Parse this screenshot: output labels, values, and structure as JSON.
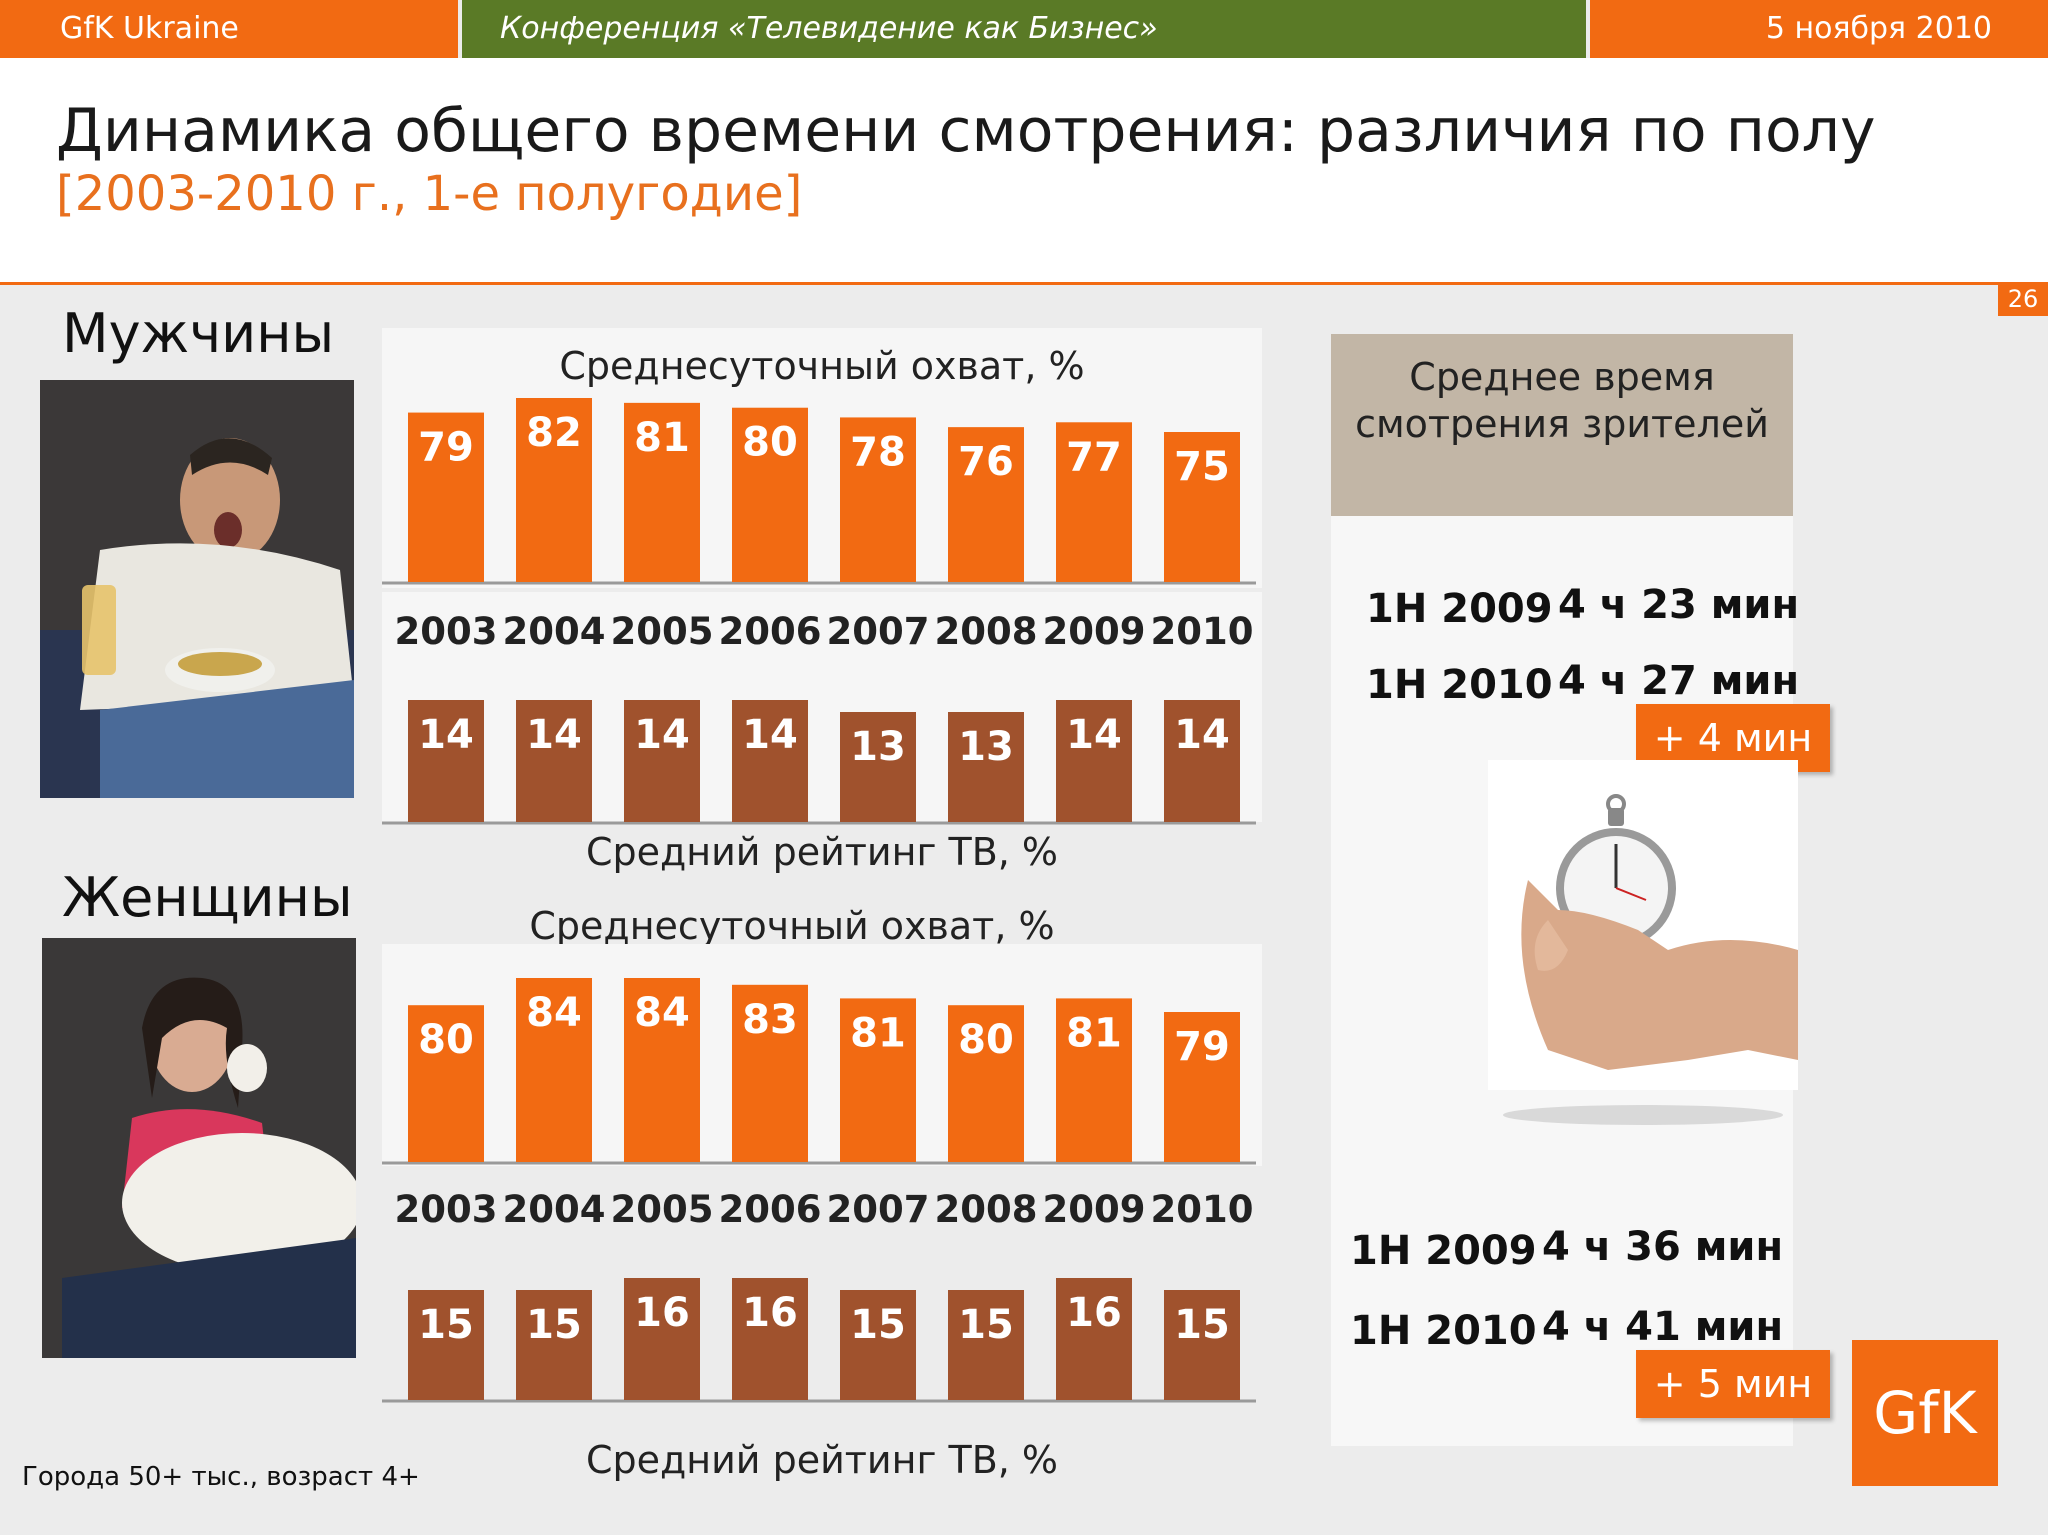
{
  "header": {
    "left": "GfK Ukraine",
    "center": "Конференция «Телевидение  как  Бизнес»",
    "right": "5 ноября 2010"
  },
  "title": "Динамика общего времени смотрения: различия по полу",
  "subtitle": "[2003-2010 г., 1-е полугодие]",
  "page_number": "26",
  "men": {
    "label": "Мужчины",
    "reach_caption": "Среднесуточный охват, %",
    "rating_caption": "Средний рейтинг ТВ, %"
  },
  "women": {
    "label": "Женщины",
    "reach_caption": "Среднесуточный охват, %",
    "rating_caption": "Средний рейтинг ТВ, %"
  },
  "right_panel": {
    "heading": "Среднее время смотрения зрителей",
    "men": {
      "rows": [
        {
          "period": "1H 2009",
          "value": "4 ч 23 мин"
        },
        {
          "period": "1H 2010",
          "value": "4 ч 27 мин"
        }
      ],
      "delta": "+ 4 мин"
    },
    "women": {
      "rows": [
        {
          "period": "1H 2009",
          "value": "4 ч 36 мин"
        },
        {
          "period": "1H 2010",
          "value": "4 ч 41 мин"
        }
      ],
      "delta": "+ 5 мин"
    }
  },
  "logo": "GfK",
  "footnote": "Города 50+ тыс., возраст 4+",
  "colors": {
    "orange": "#f26a12",
    "brown": "#a0522d",
    "green": "#5a7a26",
    "tan": "#c2b6a6"
  },
  "chart_data": [
    {
      "type": "bar",
      "title": "Среднесуточный охват, %",
      "group": "Мужчины",
      "categories": [
        "2003",
        "2004",
        "2005",
        "2006",
        "2007",
        "2008",
        "2009",
        "2010"
      ],
      "values": [
        79,
        82,
        81,
        80,
        78,
        76,
        77,
        75
      ],
      "color": "#f26a12"
    },
    {
      "type": "bar",
      "title": "Средний рейтинг ТВ, %",
      "group": "Мужчины",
      "categories": [
        "2003",
        "2004",
        "2005",
        "2006",
        "2007",
        "2008",
        "2009",
        "2010"
      ],
      "values": [
        14,
        14,
        14,
        14,
        13,
        13,
        14,
        14
      ],
      "color": "#a0522d"
    },
    {
      "type": "bar",
      "title": "Среднесуточный охват, %",
      "group": "Женщины",
      "categories": [
        "2003",
        "2004",
        "2005",
        "2006",
        "2007",
        "2008",
        "2009",
        "2010"
      ],
      "values": [
        80,
        84,
        84,
        83,
        81,
        80,
        81,
        79
      ],
      "color": "#f26a12"
    },
    {
      "type": "bar",
      "title": "Средний рейтинг ТВ, %",
      "group": "Женщины",
      "categories": [
        "2003",
        "2004",
        "2005",
        "2006",
        "2007",
        "2008",
        "2009",
        "2010"
      ],
      "values": [
        15,
        15,
        16,
        16,
        15,
        15,
        16,
        15
      ],
      "color": "#a0522d"
    }
  ]
}
